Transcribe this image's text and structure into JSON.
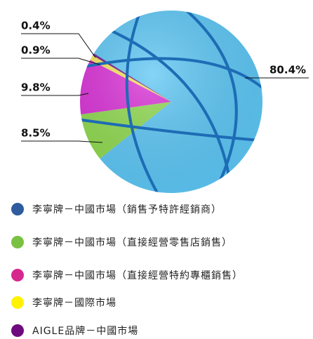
{
  "chart_data": {
    "type": "pie",
    "categories": [
      "李寧牌－中國市場（銷售予特許經銷商）",
      "李寧牌－中國市場（直接經營零售店銷售）",
      "李寧牌－中國市場（直接經營特約專櫃銷售）",
      "李寧牌－國際市場",
      "AIGLE品牌－中國市場"
    ],
    "values": [
      80.4,
      8.5,
      9.8,
      0.9,
      0.4
    ],
    "value_labels": [
      "80.4%",
      "8.5%",
      "9.8%",
      "0.9%",
      "0.4%"
    ],
    "colors": [
      "#2e5c9e",
      "#7ac143",
      "#d6278f",
      "#fff200",
      "#6d0a7e"
    ],
    "slice_colors": [
      "#5cc6f4",
      "#8fd94f",
      "#d92fd6",
      "#f6e35a",
      "#6a1a8a"
    ]
  }
}
